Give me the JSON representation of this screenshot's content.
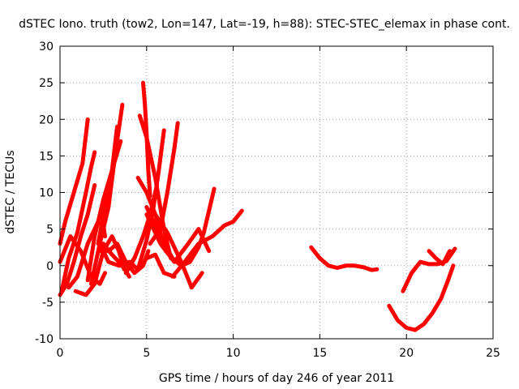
{
  "chart_data": {
    "type": "line",
    "title": "dSTEC Iono. truth (tow2, Lon=147, Lat=-19, h=88): STEC-STEC_elemax in phase cont.",
    "xlabel": "GPS time / hours of day 246 of year 2011",
    "ylabel": "dSTEC  / TECUs",
    "xlim": [
      0,
      25
    ],
    "ylim": [
      -10,
      30
    ],
    "xticks": [
      0,
      5,
      10,
      15,
      20,
      25
    ],
    "yticks": [
      -10,
      -5,
      0,
      5,
      10,
      15,
      20,
      25,
      30
    ],
    "grid": true,
    "series_color": "#ff0000",
    "series": [
      {
        "x": [
          0.0,
          0.3,
          0.8,
          1.3,
          1.6
        ],
        "y": [
          3.0,
          6.0,
          10.0,
          14.0,
          20.0
        ]
      },
      {
        "x": [
          0.0,
          0.4,
          0.8,
          1.2,
          1.6,
          2.0
        ],
        "y": [
          -4.0,
          -2.5,
          0.5,
          4.0,
          7.0,
          11.0
        ]
      },
      {
        "x": [
          0.1,
          0.5,
          1.0,
          1.5,
          1.8,
          2.0
        ],
        "y": [
          -3.5,
          1.0,
          4.5,
          10.0,
          13.5,
          15.5
        ]
      },
      {
        "x": [
          0.0,
          0.6,
          1.2,
          1.8,
          2.3,
          2.6
        ],
        "y": [
          0.5,
          4.0,
          2.0,
          -1.5,
          -2.5,
          -1.0
        ]
      },
      {
        "x": [
          0.5,
          1.0,
          1.6,
          2.2,
          2.5,
          2.6
        ],
        "y": [
          -3.0,
          -1.5,
          3.0,
          6.0,
          5.5,
          4.0
        ]
      },
      {
        "x": [
          1.6,
          2.0,
          2.5,
          3.0,
          3.5
        ],
        "y": [
          -2.0,
          4.0,
          9.0,
          13.0,
          17.0
        ]
      },
      {
        "x": [
          1.8,
          2.3,
          2.8,
          3.2,
          3.6
        ],
        "y": [
          -2.5,
          3.0,
          8.0,
          15.5,
          22.0
        ]
      },
      {
        "x": [
          2.2,
          2.6,
          3.0,
          3.3
        ],
        "y": [
          3.0,
          8.0,
          13.0,
          19.0
        ]
      },
      {
        "x": [
          2.3,
          2.8,
          3.4,
          4.0,
          4.3
        ],
        "y": [
          3.0,
          0.5,
          0.0,
          0.0,
          1.0
        ]
      },
      {
        "x": [
          2.5,
          3.0,
          3.6,
          4.0
        ],
        "y": [
          3.0,
          1.5,
          0.0,
          -1.5
        ]
      },
      {
        "x": [
          0.9,
          1.5,
          2.0,
          2.5,
          3.0,
          3.4,
          3.7
        ],
        "y": [
          -3.5,
          -4.0,
          -2.5,
          2.0,
          4.0,
          2.0,
          -0.5
        ]
      },
      {
        "x": [
          2.3,
          2.8,
          3.3,
          3.8,
          4.3,
          4.8,
          5.1
        ],
        "y": [
          2.0,
          2.0,
          3.0,
          0.5,
          -1.0,
          0.0,
          2.0
        ]
      },
      {
        "x": [
          4.5,
          5.0,
          5.5,
          5.8,
          6.1
        ],
        "y": [
          12.0,
          10.0,
          7.0,
          4.5,
          2.0
        ]
      },
      {
        "x": [
          4.6,
          5.0,
          5.5,
          6.0,
          6.4
        ],
        "y": [
          20.5,
          17.5,
          12.0,
          5.0,
          1.0
        ]
      },
      {
        "x": [
          4.8,
          4.9,
          5.0,
          5.1,
          5.2
        ],
        "y": [
          25.0,
          22.0,
          18.0,
          13.0,
          9.5
        ]
      },
      {
        "x": [
          3.8,
          4.3,
          4.8,
          5.2,
          5.6
        ],
        "y": [
          -1.0,
          1.0,
          4.0,
          7.0,
          11.0
        ]
      },
      {
        "x": [
          4.5,
          5.0,
          5.4,
          5.7,
          6.0
        ],
        "y": [
          -0.5,
          3.5,
          8.0,
          13.0,
          18.5
        ]
      },
      {
        "x": [
          5.2,
          5.8,
          6.2,
          6.6,
          6.8
        ],
        "y": [
          3.0,
          5.0,
          10.0,
          16.0,
          19.5
        ]
      },
      {
        "x": [
          5.0,
          5.5,
          6.0,
          6.5,
          7.0,
          7.5,
          8.0,
          8.3,
          8.6,
          8.9
        ],
        "y": [
          8.0,
          5.5,
          3.0,
          1.0,
          0.0,
          0.5,
          2.5,
          4.5,
          7.5,
          10.5
        ]
      },
      {
        "x": [
          5.5,
          6.2,
          7.0,
          7.6,
          8.2
        ],
        "y": [
          7.0,
          4.5,
          0.5,
          -3.0,
          -1.0
        ]
      },
      {
        "x": [
          3.5,
          4.0,
          4.5,
          5.0,
          5.5,
          6.0,
          6.6
        ],
        "y": [
          0.0,
          0.5,
          -0.5,
          1.0,
          1.5,
          -1.0,
          -1.5
        ]
      },
      {
        "x": [
          5.0,
          5.8,
          6.6,
          7.4,
          8.0,
          8.6
        ],
        "y": [
          7.0,
          3.0,
          0.5,
          3.0,
          5.0,
          2.0
        ]
      },
      {
        "x": [
          6.5,
          7.2,
          8.0,
          8.8,
          9.5,
          10.0,
          10.5
        ],
        "y": [
          -1.5,
          0.5,
          3.0,
          4.0,
          5.5,
          6.0,
          7.5
        ]
      },
      {
        "x": [
          14.5,
          15.0,
          15.5,
          16.0,
          16.5,
          17.0,
          17.5,
          18.0,
          18.3
        ],
        "y": [
          2.5,
          1.0,
          0.0,
          -0.3,
          0.0,
          0.0,
          -0.2,
          -0.6,
          -0.5
        ]
      },
      {
        "x": [
          19.0,
          19.5,
          20.0,
          20.5,
          21.0,
          21.5,
          22.0,
          22.4,
          22.7
        ],
        "y": [
          -5.5,
          -7.5,
          -8.5,
          -8.8,
          -8.0,
          -6.5,
          -4.5,
          -2.0,
          0.0
        ]
      },
      {
        "x": [
          19.8,
          20.3,
          20.8,
          21.3,
          21.8,
          22.3,
          22.8
        ],
        "y": [
          -3.5,
          -1.0,
          0.5,
          0.2,
          0.2,
          0.6,
          2.3
        ]
      },
      {
        "x": [
          21.3,
          21.7,
          22.1,
          22.5
        ],
        "y": [
          2.0,
          1.0,
          0.2,
          2.0
        ]
      }
    ]
  }
}
